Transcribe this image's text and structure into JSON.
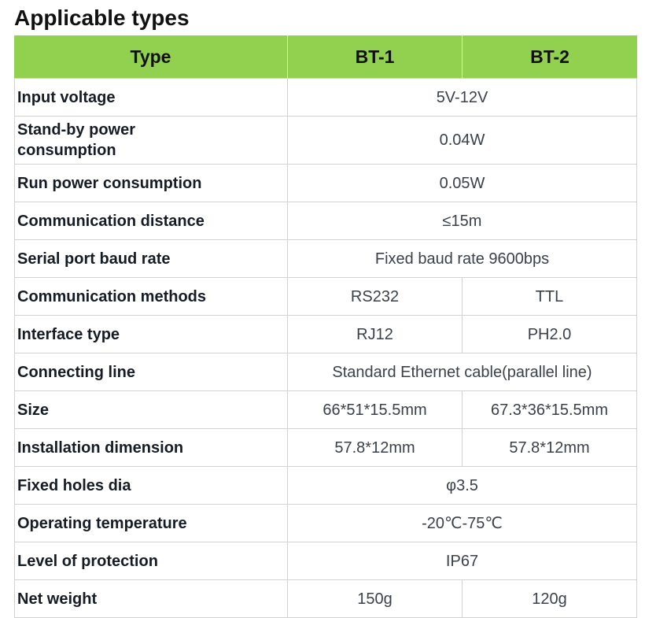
{
  "page_title": "Applicable types",
  "colors": {
    "header_bg": "#92d050",
    "border": "#d2d2d2",
    "label_text": "#161c26",
    "value_text": "#3a414a"
  },
  "table": {
    "headers": [
      "Type",
      "BT-1",
      "BT-2"
    ],
    "rows": [
      {
        "label": "Input voltage",
        "merged": true,
        "values": [
          "5V-12V"
        ]
      },
      {
        "label": "Stand-by power\nconsumption",
        "merged": true,
        "values": [
          "0.04W"
        ]
      },
      {
        "label": "Run power consumption",
        "merged": true,
        "values": [
          "0.05W"
        ]
      },
      {
        "label": "Communication distance",
        "merged": true,
        "values": [
          "≤15m"
        ]
      },
      {
        "label": "Serial port baud rate",
        "merged": true,
        "values": [
          "Fixed baud rate 9600bps"
        ]
      },
      {
        "label": "Communication methods",
        "merged": false,
        "values": [
          "RS232",
          "TTL"
        ]
      },
      {
        "label": "Interface type",
        "merged": false,
        "values": [
          "RJ12",
          "PH2.0"
        ]
      },
      {
        "label": "Connecting line",
        "merged": true,
        "values": [
          "Standard Ethernet cable(parallel line)"
        ]
      },
      {
        "label": "Size",
        "merged": false,
        "values": [
          "66*51*15.5mm",
          "67.3*36*15.5mm"
        ]
      },
      {
        "label": "Installation dimension",
        "merged": false,
        "values": [
          "57.8*12mm",
          "57.8*12mm"
        ]
      },
      {
        "label": "Fixed holes dia",
        "merged": true,
        "values": [
          "φ3.5"
        ]
      },
      {
        "label": "Operating temperature",
        "merged": true,
        "values": [
          "-20℃-75℃"
        ]
      },
      {
        "label": "Level of protection",
        "merged": true,
        "values": [
          "IP67"
        ]
      },
      {
        "label": "Net weight",
        "merged": false,
        "values": [
          "150g",
          "120g"
        ]
      }
    ]
  }
}
